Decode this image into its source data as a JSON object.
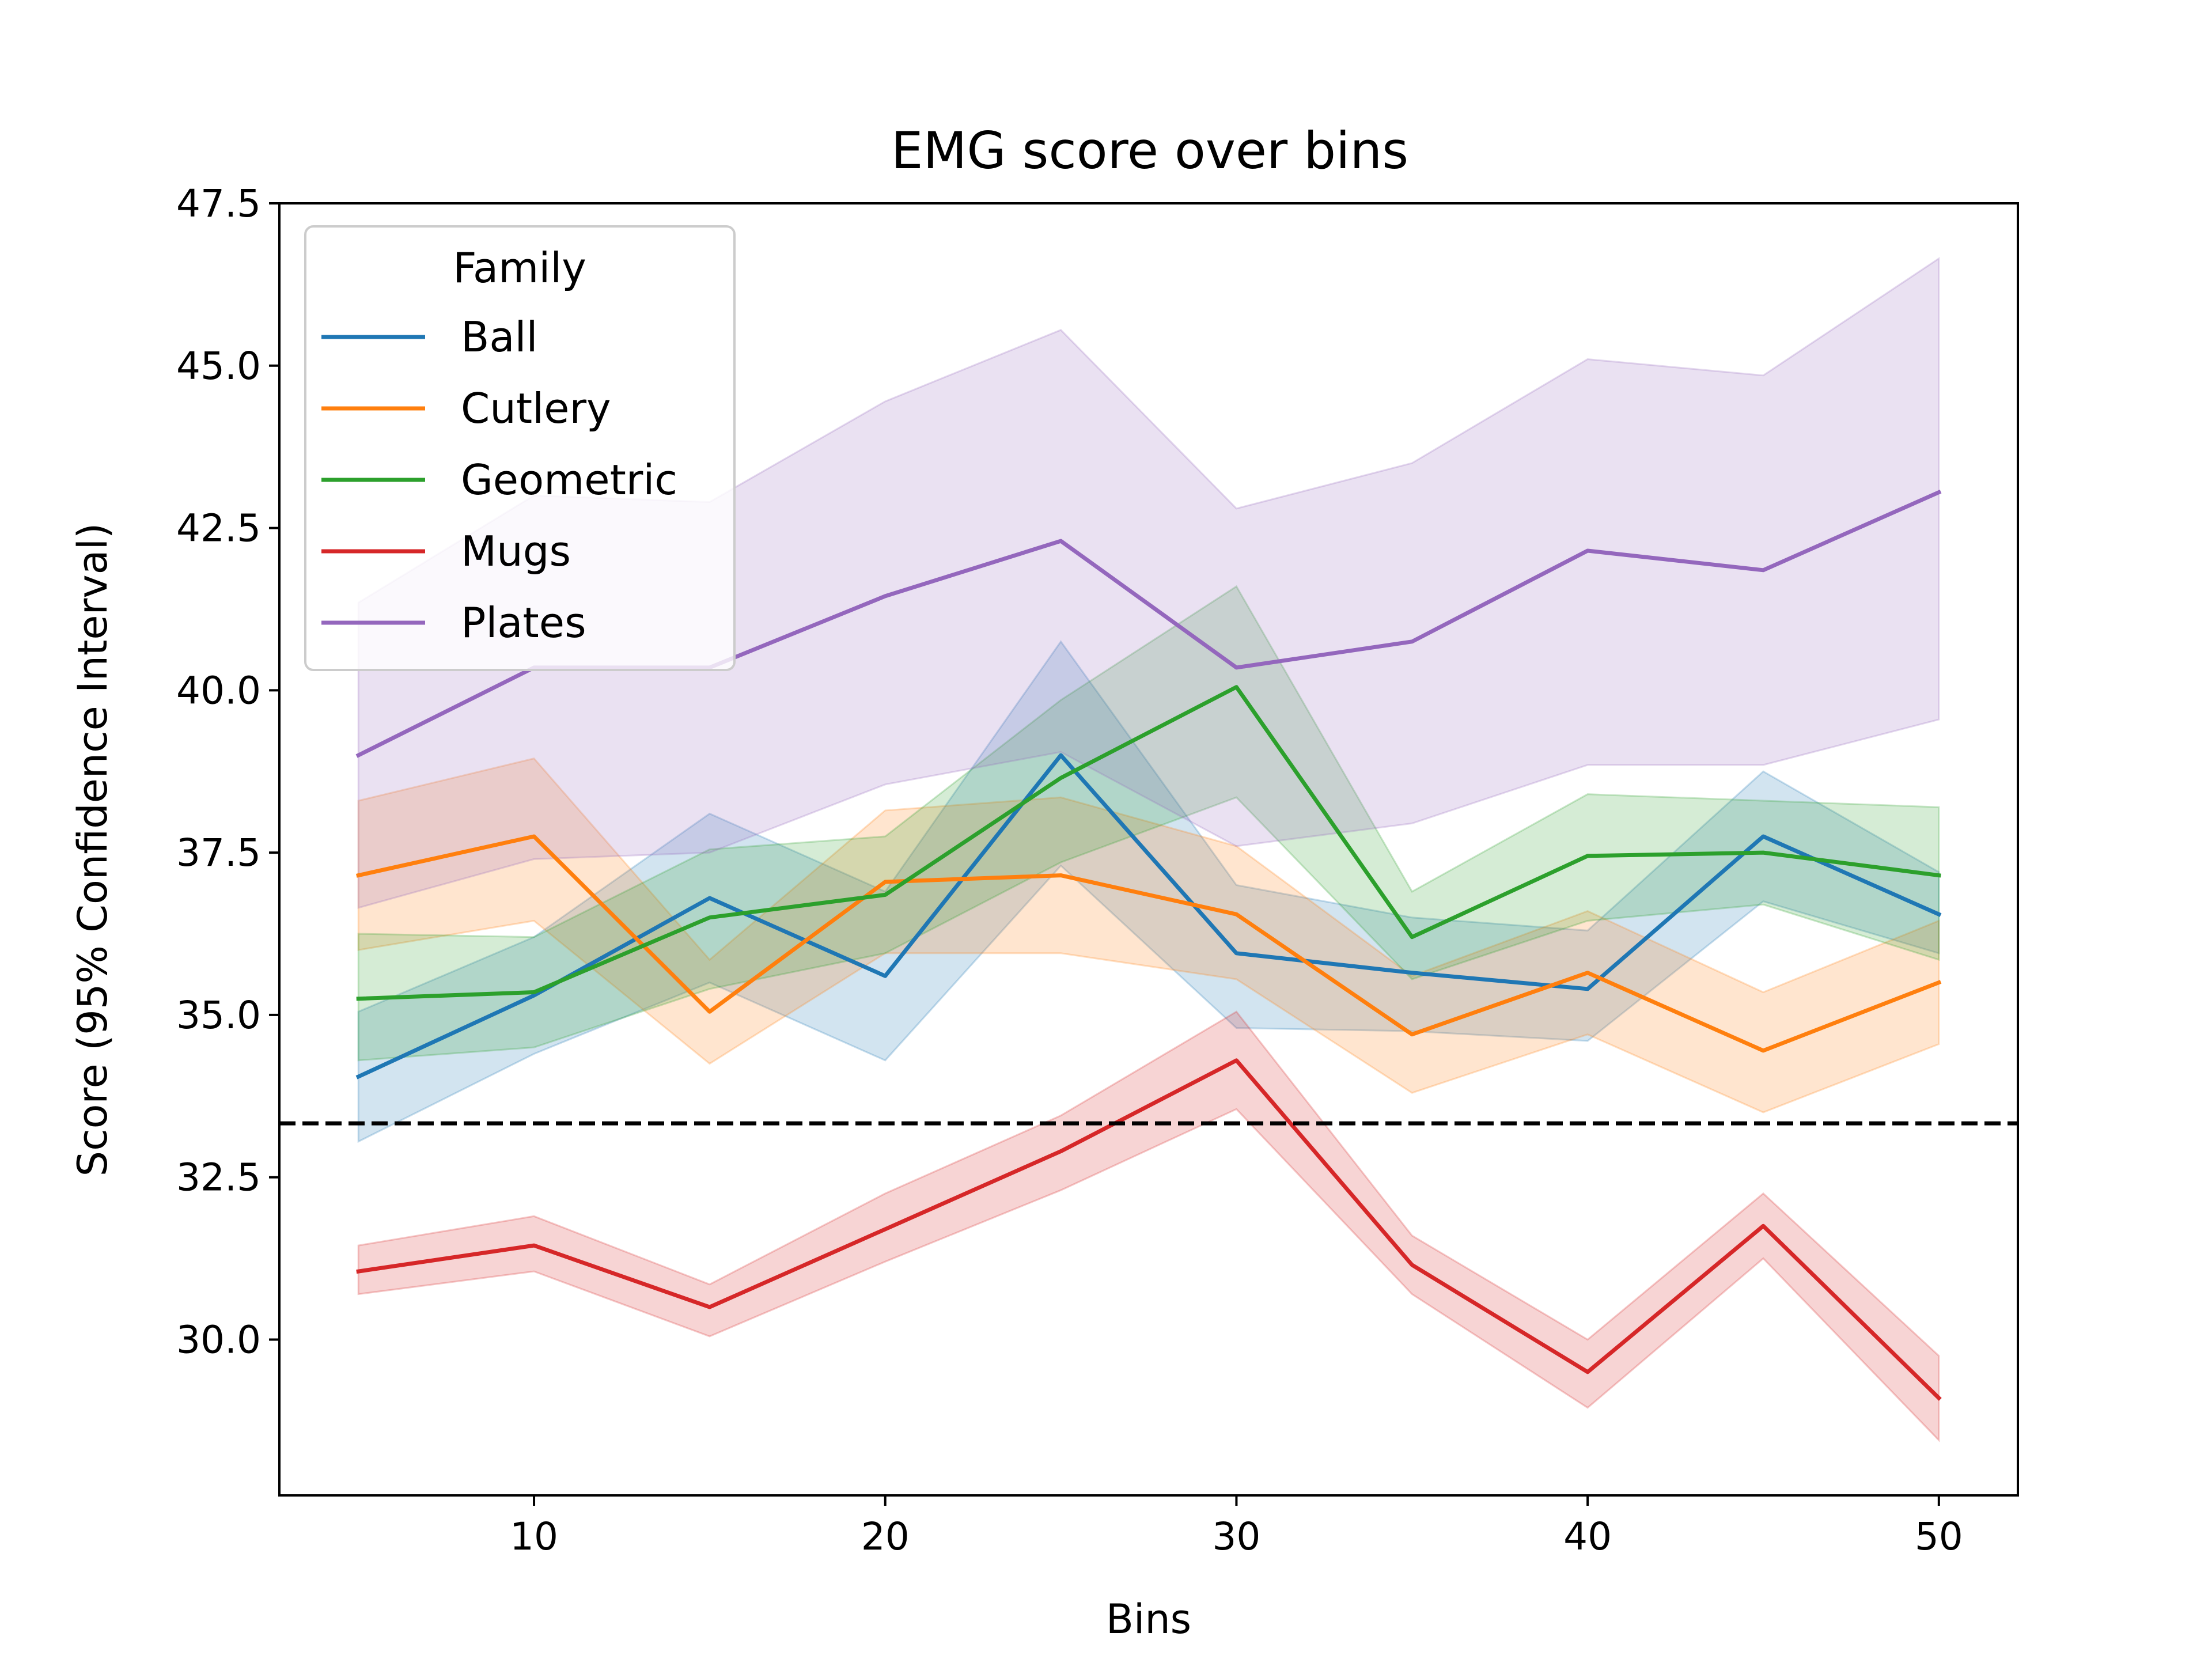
{
  "chart_data": {
    "type": "line",
    "title": "EMG score over bins",
    "xlabel": "Bins",
    "ylabel": "Score (95% Confidence Interval)",
    "xlim": [
      2.75,
      52.25
    ],
    "ylim": [
      27.6,
      47.5
    ],
    "xticks": [
      10,
      20,
      30,
      40,
      50
    ],
    "yticks": [
      30.0,
      32.5,
      35.0,
      37.5,
      40.0,
      42.5,
      45.0,
      47.5
    ],
    "grid": false,
    "legend": {
      "title": "Family",
      "position": "top-left"
    },
    "reference_line": {
      "y": 33.33,
      "style": "dashed",
      "color": "#000000"
    },
    "x": [
      5,
      10,
      15,
      20,
      25,
      30,
      35,
      40,
      45,
      50
    ],
    "series": [
      {
        "name": "Ball",
        "color": "#1f77b4",
        "values": [
          34.05,
          35.3,
          36.8,
          35.6,
          39.0,
          35.95,
          35.65,
          35.4,
          37.75,
          36.55
        ],
        "lower": [
          33.05,
          34.4,
          35.5,
          34.3,
          37.3,
          34.8,
          34.75,
          34.6,
          36.75,
          35.95
        ],
        "upper": [
          35.05,
          36.2,
          38.1,
          36.9,
          40.75,
          37.0,
          36.5,
          36.3,
          38.75,
          37.2
        ]
      },
      {
        "name": "Cutlery",
        "color": "#ff7f0e",
        "values": [
          37.15,
          37.75,
          35.05,
          37.05,
          37.15,
          36.55,
          34.7,
          35.65,
          34.45,
          35.5
        ],
        "lower": [
          36.0,
          36.45,
          34.25,
          35.95,
          35.95,
          35.55,
          33.8,
          34.7,
          33.5,
          34.55
        ],
        "upper": [
          38.3,
          38.95,
          35.85,
          38.15,
          38.35,
          37.6,
          35.6,
          36.6,
          35.35,
          36.45
        ]
      },
      {
        "name": "Geometric",
        "color": "#2ca02c",
        "values": [
          35.25,
          35.35,
          36.5,
          36.85,
          38.65,
          40.05,
          36.2,
          37.45,
          37.5,
          37.15
        ],
        "lower": [
          34.3,
          34.5,
          35.4,
          35.95,
          37.35,
          38.35,
          35.55,
          36.45,
          36.7,
          35.85
        ],
        "upper": [
          36.25,
          36.2,
          37.55,
          37.75,
          39.85,
          41.6,
          36.9,
          38.4,
          38.3,
          38.2
        ]
      },
      {
        "name": "Mugs",
        "color": "#d62728",
        "values": [
          31.05,
          31.45,
          30.5,
          31.7,
          32.9,
          34.3,
          31.15,
          29.5,
          31.75,
          29.1
        ],
        "lower": [
          30.7,
          31.05,
          30.05,
          31.2,
          32.3,
          33.55,
          30.7,
          28.95,
          31.25,
          28.45
        ],
        "upper": [
          31.45,
          31.9,
          30.85,
          32.25,
          33.45,
          35.05,
          31.6,
          30.0,
          32.25,
          29.75
        ]
      },
      {
        "name": "Plates",
        "color": "#9467bd",
        "values": [
          39.0,
          40.35,
          40.35,
          41.45,
          42.3,
          40.35,
          40.75,
          42.15,
          41.85,
          43.05
        ],
        "lower": [
          36.65,
          37.4,
          37.5,
          38.55,
          39.05,
          37.6,
          37.95,
          38.85,
          38.85,
          39.55
        ],
        "upper": [
          41.35,
          43.0,
          42.9,
          44.45,
          45.55,
          42.8,
          43.5,
          45.1,
          44.85,
          46.65
        ]
      }
    ]
  }
}
